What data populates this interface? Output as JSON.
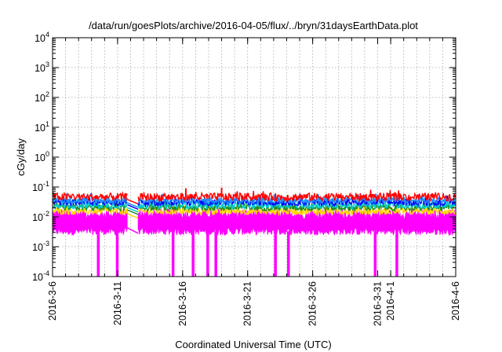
{
  "chart_data": {
    "type": "line",
    "title": "/data/run/goesPlots/archive/2016-04-05/flux/../bryn/31daysEarthData.plot",
    "xlabel": "Coordinated Universal Time (UTC)",
    "ylabel": "cGy/day",
    "xlim": [
      "2016-03-06",
      "2016-04-06"
    ],
    "ylim": [
      0.0001,
      10000
    ],
    "yscale": "log",
    "grid": true,
    "x_ticks": [
      "2016-3-6",
      "2016-3-11",
      "2016-3-16",
      "2016-3-21",
      "2016-3-26",
      "2016-3-31",
      "2016-4-1",
      "2016-4-6"
    ],
    "x_tick_dates": [
      "2016-03-06",
      "2016-03-11",
      "2016-03-16",
      "2016-03-21",
      "2016-03-26",
      "2016-03-31",
      "2016-04-01",
      "2016-04-06"
    ],
    "y_ticks": [
      {
        "value": 0.0001,
        "base": "10",
        "exp": "-4"
      },
      {
        "value": 0.001,
        "base": "10",
        "exp": "-3"
      },
      {
        "value": 0.01,
        "base": "10",
        "exp": "-2"
      },
      {
        "value": 0.1,
        "base": "10",
        "exp": "-1"
      },
      {
        "value": 1,
        "base": "10",
        "exp": "0"
      },
      {
        "value": 10,
        "base": "10",
        "exp": "1"
      },
      {
        "value": 100,
        "base": "10",
        "exp": "2"
      },
      {
        "value": 1000,
        "base": "10",
        "exp": "3"
      },
      {
        "value": 10000,
        "base": "10",
        "exp": "4"
      }
    ],
    "data_gap": [
      "2016-03-11T18:00",
      "2016-03-12T14:00"
    ],
    "series": [
      {
        "color": "#ff0000",
        "typical": 0.045,
        "spread": 0.12,
        "peaks": [
          {
            "x": "2016-03-16T06:00",
            "y": 0.09
          },
          {
            "x": "2016-03-19T00:00",
            "y": 0.095
          }
        ]
      },
      {
        "color": "#1e90ff",
        "typical": 0.035,
        "spread": 0.1
      },
      {
        "color": "#0000ff",
        "typical": 0.03,
        "spread": 0.1
      },
      {
        "color": "#00ced1",
        "typical": 0.024,
        "spread": 0.1
      },
      {
        "color": "#228b22",
        "typical": 0.02,
        "spread": 0.1
      },
      {
        "color": "#ffd700",
        "typical": 0.015,
        "spread": 0.1
      },
      {
        "color": "#ff00ff",
        "typical_low": 0.0033,
        "typical_high": 0.0125,
        "dips": [
          "2016-03-09T12:00",
          "2016-03-10T23:00",
          "2016-03-15T06:00",
          "2016-03-16T19:00",
          "2016-03-17T22:00",
          "2016-03-18T13:00",
          "2016-03-23T03:00",
          "2016-03-24T03:00",
          "2016-03-30T19:00",
          "2016-04-01T11:00"
        ],
        "dip_value": 0.0001
      }
    ]
  }
}
